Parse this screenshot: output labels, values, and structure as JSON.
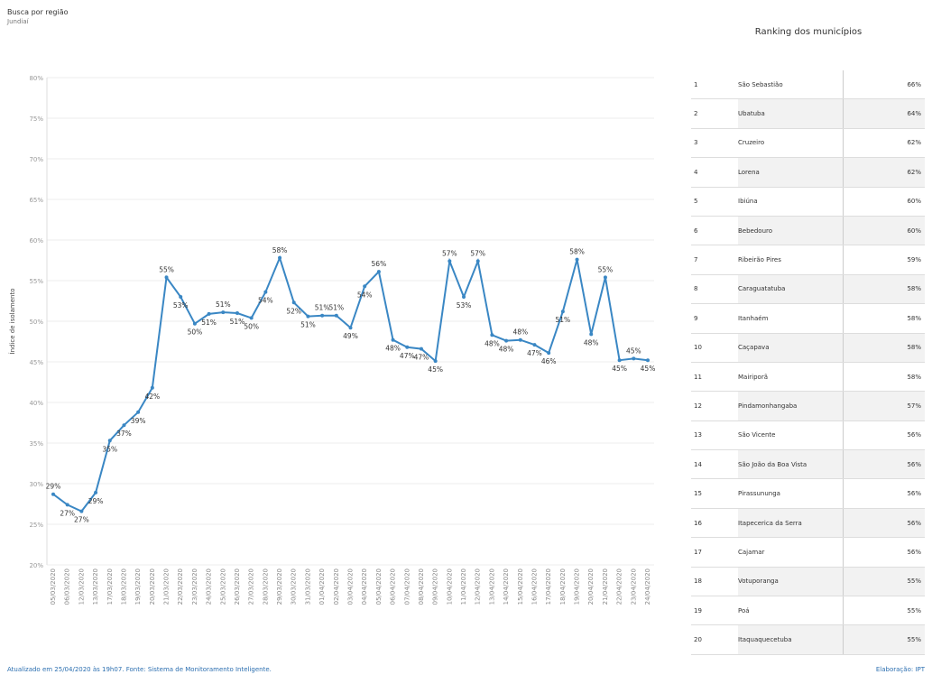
{
  "header": {
    "title": "Busca por região",
    "subtitle": "Jundiaí"
  },
  "chart_data": {
    "type": "line",
    "y_label": "Índice de isolamento",
    "categories": [
      "05/03/2020",
      "06/03/2020",
      "12/03/2020",
      "13/03/2020",
      "17/03/2020",
      "18/03/2020",
      "19/03/2020",
      "20/03/2020",
      "21/03/2020",
      "22/03/2020",
      "23/03/2020",
      "24/03/2020",
      "25/03/2020",
      "26/03/2020",
      "27/03/2020",
      "28/03/2020",
      "29/03/2020",
      "30/03/2020",
      "31/03/2020",
      "01/04/2020",
      "02/04/2020",
      "03/04/2020",
      "04/04/2020",
      "05/04/2020",
      "06/04/2020",
      "07/04/2020",
      "08/04/2020",
      "09/04/2020",
      "10/04/2020",
      "11/04/2020",
      "12/04/2020",
      "13/04/2020",
      "14/04/2020",
      "15/04/2020",
      "16/04/2020",
      "17/04/2020",
      "18/04/2020",
      "19/04/2020",
      "20/04/2020",
      "21/04/2020",
      "22/04/2020",
      "23/04/2020",
      "24/04/2020"
    ],
    "values": [
      28.7,
      27.4,
      26.6,
      28.9,
      35.3,
      37.2,
      38.8,
      41.8,
      55.4,
      53.0,
      49.7,
      50.9,
      51.1,
      51.0,
      50.4,
      53.6,
      57.8,
      52.3,
      50.6,
      50.7,
      50.7,
      49.2,
      54.3,
      56.1,
      47.7,
      46.8,
      46.6,
      45.1,
      57.4,
      53.0,
      57.4,
      48.3,
      47.6,
      47.7,
      47.1,
      46.1,
      51.2,
      57.6,
      48.4,
      55.4,
      45.2,
      45.4,
      45.2
    ],
    "value_labels": [
      "29%",
      "27%",
      "27%",
      "29%",
      "35%",
      "37%",
      "39%",
      "42%",
      "55%",
      "53%",
      "50%",
      "51%",
      "51%",
      "51%",
      "50%",
      "54%",
      "58%",
      "52%",
      "51%",
      "51%",
      "51%",
      "49%",
      "54%",
      "56%",
      "48%",
      "47%",
      "47%",
      "45%",
      "57%",
      "53%",
      "57%",
      "48%",
      "48%",
      "48%",
      "47%",
      "46%",
      "51%",
      "58%",
      "48%",
      "55%",
      "45%",
      "45%",
      "45%"
    ],
    "color": "#3a87c4",
    "ylim": [
      20,
      80
    ],
    "yticks": [
      {
        "value": 20,
        "label": "20%"
      },
      {
        "value": 25,
        "label": "25%"
      },
      {
        "value": 30,
        "label": "30%"
      },
      {
        "value": 35,
        "label": "35%"
      },
      {
        "value": 40,
        "label": "40%"
      },
      {
        "value": 45,
        "label": "45%"
      },
      {
        "value": 50,
        "label": "50%"
      },
      {
        "value": 55,
        "label": "55%"
      },
      {
        "value": 60,
        "label": "60%"
      },
      {
        "value": 65,
        "label": "65%"
      },
      {
        "value": 70,
        "label": "70%"
      },
      {
        "value": 75,
        "label": "75%"
      },
      {
        "value": 80,
        "label": "80%"
      }
    ],
    "grid": true
  },
  "ranking": {
    "title": "Ranking dos municípios",
    "rows": [
      [
        "1",
        "São Sebastião",
        "66%"
      ],
      [
        "2",
        "Ubatuba",
        "64%"
      ],
      [
        "3",
        "Cruzeiro",
        "62%"
      ],
      [
        "4",
        "Lorena",
        "62%"
      ],
      [
        "5",
        "Ibiúna",
        "60%"
      ],
      [
        "6",
        "Bebedouro",
        "60%"
      ],
      [
        "7",
        "Ribeirão Pires",
        "59%"
      ],
      [
        "8",
        "Caraguatatuba",
        "58%"
      ],
      [
        "9",
        "Itanhaém",
        "58%"
      ],
      [
        "10",
        "Caçapava",
        "58%"
      ],
      [
        "11",
        "Mairiporã",
        "58%"
      ],
      [
        "12",
        "Pindamonhangaba",
        "57%"
      ],
      [
        "13",
        "São Vicente",
        "56%"
      ],
      [
        "14",
        "São João da Boa Vista",
        "56%"
      ],
      [
        "15",
        "Pirassununga",
        "56%"
      ],
      [
        "16",
        "Itapecerica da Serra",
        "56%"
      ],
      [
        "17",
        "Cajamar",
        "56%"
      ],
      [
        "18",
        "Votuporanga",
        "55%"
      ],
      [
        "19",
        "Poá",
        "55%"
      ],
      [
        "20",
        "Itaquaquecetuba",
        "55%"
      ]
    ]
  },
  "footer": {
    "left": "Atualizado em 25/04/2020 às 19h07. Fonte: Sistema de Monitoramento Inteligente.",
    "right": "Elaboração: IPT"
  }
}
